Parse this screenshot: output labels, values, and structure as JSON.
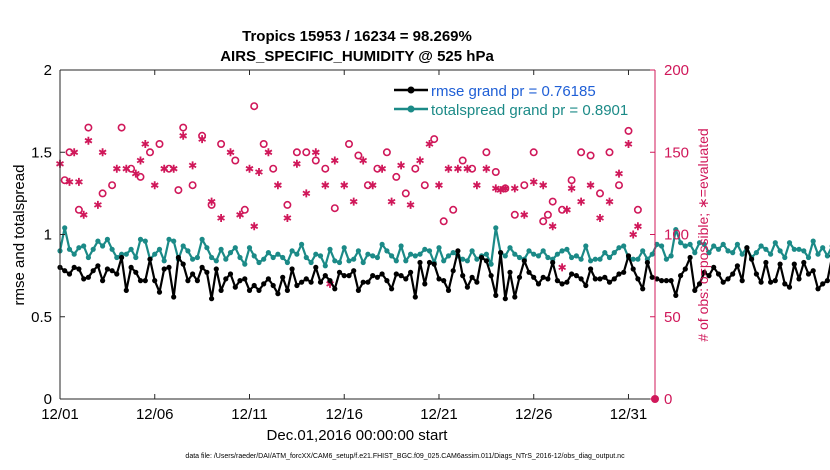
{
  "chart_data": {
    "type": "line",
    "title": "Tropics 15953 / 16234 = 98.269%",
    "subtitle": "AIRS_SPECIFIC_HUMIDITY @ 525 hPa",
    "xlabel": "Dec.01,2016 00:00:00 start",
    "ylabel": "rmse and totalspread",
    "ylabel_right": "# of obs: o=possible; ∗=evaluated",
    "xlim": [
      0,
      31.4
    ],
    "ylim": [
      0,
      2
    ],
    "ylim_right": [
      0,
      200
    ],
    "x_ticks": [
      {
        "x": 0,
        "label": "12/01"
      },
      {
        "x": 5,
        "label": "12/06"
      },
      {
        "x": 10,
        "label": "12/11"
      },
      {
        "x": 15,
        "label": "12/16"
      },
      {
        "x": 20,
        "label": "12/21"
      },
      {
        "x": 25,
        "label": "12/26"
      },
      {
        "x": 30,
        "label": "12/31"
      }
    ],
    "y_ticks": [
      0,
      0.5,
      1,
      1.5,
      2
    ],
    "y_ticks_right": [
      0,
      50,
      100,
      150,
      200
    ],
    "x_step_days": 0.25,
    "legend": {
      "position": "top-right",
      "entries": [
        "rmse grand pr = 0.76185",
        "totalspread grand pr = 0.8901"
      ]
    },
    "series": [
      {
        "name": "rmse",
        "axis": "left",
        "color": "#000000",
        "values": [
          0.8,
          0.78,
          0.76,
          0.8,
          0.79,
          0.73,
          0.74,
          0.78,
          0.81,
          0.72,
          0.79,
          0.78,
          0.76,
          0.86,
          0.66,
          0.8,
          0.77,
          0.72,
          0.72,
          0.85,
          0.72,
          0.65,
          0.79,
          0.8,
          0.62,
          0.86,
          0.82,
          0.72,
          0.76,
          0.72,
          0.8,
          0.77,
          0.61,
          0.79,
          0.66,
          0.73,
          0.76,
          0.68,
          0.72,
          0.73,
          0.66,
          0.69,
          0.66,
          0.7,
          0.73,
          0.69,
          0.64,
          0.74,
          0.66,
          0.79,
          0.69,
          0.71,
          0.73,
          0.71,
          0.8,
          0.71,
          0.75,
          0.72,
          0.67,
          0.77,
          0.75,
          0.75,
          0.78,
          0.66,
          0.71,
          0.71,
          0.75,
          0.74,
          0.76,
          0.72,
          0.67,
          0.76,
          0.75,
          0.73,
          0.77,
          0.62,
          0.83,
          0.7,
          0.83,
          0.82,
          0.73,
          0.72,
          0.66,
          0.78,
          0.9,
          0.75,
          0.68,
          0.74,
          0.71,
          0.86,
          0.84,
          0.75,
          0.63,
          0.89,
          0.61,
          0.77,
          0.62,
          0.74,
          0.84,
          0.77,
          0.74,
          0.7,
          0.74,
          0.73,
          0.83,
          0.72,
          0.7,
          0.71,
          0.76,
          0.75,
          0.73,
          0.69,
          0.79,
          0.73,
          0.73,
          0.74,
          0.71,
          0.73,
          0.76,
          0.77,
          0.87,
          0.79,
          0.73,
          0.67,
          0.83,
          0.74,
          0.73,
          0.72,
          0.72,
          0.72,
          0.63,
          0.75,
          0.79,
          0.86,
          0.66,
          0.7,
          0.77,
          0.75,
          0.8,
          0.76,
          0.71,
          0.73,
          0.76,
          0.81,
          0.72,
          0.92,
          0.85,
          0.76,
          0.71,
          0.83,
          0.71,
          0.72,
          0.82,
          0.7,
          0.68,
          0.82,
          0.73,
          0.83,
          0.76,
          0.78,
          0.67,
          0.7,
          0.72,
          0.87,
          0.83,
          0.7,
          0.76,
          0.75,
          0.81,
          0.89,
          0.87,
          0.72,
          0.8,
          0.9,
          0.84,
          0.88,
          0.86,
          0.7,
          0.82,
          0.7,
          0.72,
          0.86,
          0.88,
          0.74,
          0.8,
          0.82,
          0.85,
          0.75,
          0.82,
          0.8,
          0.78,
          0.85,
          0.82,
          0.68,
          0.7,
          0.8,
          0.9,
          0.82,
          0.76,
          0.61,
          0.72,
          0.86,
          0.86
        ]
      },
      {
        "name": "totalspread",
        "axis": "left",
        "color": "#1b8a87",
        "values": [
          0.9,
          1.04,
          0.91,
          0.88,
          0.92,
          0.93,
          0.86,
          0.91,
          0.96,
          0.93,
          0.97,
          0.91,
          0.86,
          0.88,
          0.88,
          0.91,
          0.86,
          0.97,
          0.96,
          0.85,
          0.88,
          0.91,
          0.84,
          0.97,
          0.96,
          0.85,
          0.93,
          0.9,
          0.85,
          0.86,
          0.97,
          0.92,
          0.86,
          0.84,
          0.91,
          0.85,
          0.89,
          0.92,
          0.86,
          0.82,
          0.92,
          0.87,
          0.83,
          0.85,
          0.89,
          0.86,
          0.88,
          0.86,
          0.83,
          0.9,
          0.88,
          0.94,
          0.86,
          0.83,
          0.88,
          0.87,
          0.81,
          0.91,
          0.84,
          0.83,
          0.92,
          0.84,
          0.85,
          0.9,
          0.83,
          0.88,
          0.87,
          0.86,
          0.94,
          0.9,
          0.87,
          0.84,
          0.93,
          0.84,
          0.88,
          0.87,
          0.88,
          0.91,
          0.9,
          0.83,
          0.92,
          0.84,
          0.87,
          0.89,
          0.87,
          0.85,
          0.84,
          0.9,
          0.85,
          0.87,
          0.88,
          0.82,
          1.04,
          0.89,
          0.87,
          0.92,
          0.88,
          0.86,
          0.85,
          0.9,
          0.88,
          0.87,
          0.9,
          0.86,
          0.85,
          0.88,
          0.9,
          0.91,
          0.86,
          0.87,
          0.85,
          0.93,
          0.84,
          0.85,
          0.85,
          0.89,
          0.86,
          0.89,
          0.92,
          0.93,
          0.86,
          0.85,
          0.85,
          0.9,
          0.85,
          0.88,
          0.94,
          0.93,
          0.85,
          0.87,
          1.03,
          0.95,
          0.93,
          0.94,
          0.89,
          0.95,
          0.94,
          0.89,
          0.93,
          0.91,
          0.94,
          0.9,
          0.89,
          0.94,
          0.88,
          0.92,
          0.86,
          0.89,
          0.93,
          0.91,
          0.88,
          0.95,
          0.9,
          0.86,
          0.95,
          0.91,
          0.91,
          0.9,
          0.86,
          0.96,
          0.88,
          0.92,
          0.87,
          0.93,
          0.9,
          0.92,
          0.88,
          0.91,
          0.96,
          0.91,
          0.95,
          0.91,
          0.92,
          0.97,
          0.96,
          0.96,
          0.9,
          0.92,
          0.93,
          0.9,
          0.9,
          0.87,
          0.89,
          0.88,
          0.95,
          0.87,
          0.9,
          0.9,
          0.92,
          0.89,
          0.94,
          0.95,
          0.94,
          0.89,
          0.91,
          0.92,
          0.88,
          0.85,
          0.91,
          0.86
        ]
      },
      {
        "name": "possible",
        "axis": "right",
        "marker": "o",
        "color": "#d0185a",
        "points": [
          [
            0.25,
            133
          ],
          [
            0.5,
            150
          ],
          [
            1.0,
            115
          ],
          [
            1.5,
            165
          ],
          [
            2.25,
            125
          ],
          [
            2.75,
            130
          ],
          [
            3.25,
            165
          ],
          [
            3.75,
            140
          ],
          [
            4.25,
            135
          ],
          [
            4.75,
            150
          ],
          [
            5.25,
            155
          ],
          [
            5.75,
            140
          ],
          [
            6.25,
            127
          ],
          [
            6.5,
            165
          ],
          [
            7.0,
            130
          ],
          [
            7.5,
            160
          ],
          [
            8.0,
            118
          ],
          [
            8.5,
            155
          ],
          [
            9.25,
            145
          ],
          [
            9.75,
            115
          ],
          [
            10.25,
            178
          ],
          [
            10.75,
            155
          ],
          [
            11.25,
            140
          ],
          [
            12.0,
            118
          ],
          [
            12.5,
            150
          ],
          [
            13.0,
            150
          ],
          [
            13.5,
            145
          ],
          [
            14.0,
            140
          ],
          [
            14.5,
            116
          ],
          [
            15.25,
            155
          ],
          [
            15.75,
            148
          ],
          [
            16.25,
            130
          ],
          [
            16.75,
            140
          ],
          [
            17.25,
            150
          ],
          [
            17.75,
            135
          ],
          [
            18.25,
            125
          ],
          [
            18.75,
            140
          ],
          [
            19.25,
            130
          ],
          [
            19.75,
            158
          ],
          [
            20.25,
            108
          ],
          [
            20.75,
            115
          ],
          [
            21.25,
            145
          ],
          [
            21.75,
            140
          ],
          [
            22.5,
            150
          ],
          [
            23.0,
            138
          ],
          [
            23.5,
            128
          ],
          [
            24.0,
            112
          ],
          [
            24.5,
            130
          ],
          [
            25.0,
            150
          ],
          [
            25.5,
            108
          ],
          [
            25.75,
            112
          ],
          [
            26.0,
            120
          ],
          [
            26.5,
            115
          ],
          [
            27.0,
            133
          ],
          [
            27.5,
            150
          ],
          [
            28.0,
            148
          ],
          [
            28.5,
            125
          ],
          [
            29.0,
            150
          ],
          [
            29.5,
            130
          ],
          [
            30.0,
            163
          ],
          [
            30.5,
            115
          ]
        ]
      },
      {
        "name": "evaluated",
        "axis": "right",
        "marker": "*",
        "color": "#d0185a",
        "points": [
          [
            0.0,
            143
          ],
          [
            0.5,
            132
          ],
          [
            0.75,
            150
          ],
          [
            1.0,
            132
          ],
          [
            1.25,
            112
          ],
          [
            1.5,
            157
          ],
          [
            2.0,
            118
          ],
          [
            2.25,
            150
          ],
          [
            3.0,
            140
          ],
          [
            3.5,
            140
          ],
          [
            4.0,
            137
          ],
          [
            4.25,
            145
          ],
          [
            4.5,
            155
          ],
          [
            5.0,
            130
          ],
          [
            5.5,
            140
          ],
          [
            6.0,
            140
          ],
          [
            6.5,
            160
          ],
          [
            7.0,
            142
          ],
          [
            7.5,
            158
          ],
          [
            8.0,
            120
          ],
          [
            8.5,
            110
          ],
          [
            9.0,
            150
          ],
          [
            9.5,
            112
          ],
          [
            10.0,
            140
          ],
          [
            10.25,
            105
          ],
          [
            10.5,
            138
          ],
          [
            11.0,
            150
          ],
          [
            11.5,
            130
          ],
          [
            12.0,
            110
          ],
          [
            12.5,
            143
          ],
          [
            13.0,
            125
          ],
          [
            13.5,
            150
          ],
          [
            14.0,
            130
          ],
          [
            14.25,
            70
          ],
          [
            14.5,
            145
          ],
          [
            15.0,
            130
          ],
          [
            15.5,
            120
          ],
          [
            16.0,
            145
          ],
          [
            16.5,
            130
          ],
          [
            17.0,
            140
          ],
          [
            17.5,
            120
          ],
          [
            18.0,
            142
          ],
          [
            18.5,
            118
          ],
          [
            19.0,
            145
          ],
          [
            19.5,
            155
          ],
          [
            20.0,
            130
          ],
          [
            20.5,
            140
          ],
          [
            21.0,
            140
          ],
          [
            21.5,
            140
          ],
          [
            22.0,
            130
          ],
          [
            22.5,
            140
          ],
          [
            23.0,
            128
          ],
          [
            23.25,
            127
          ],
          [
            23.5,
            128
          ],
          [
            24.0,
            128
          ],
          [
            24.5,
            112
          ],
          [
            25.0,
            132
          ],
          [
            25.5,
            130
          ],
          [
            26.0,
            105
          ],
          [
            26.5,
            80
          ],
          [
            26.75,
            115
          ],
          [
            27.0,
            128
          ],
          [
            27.5,
            120
          ],
          [
            28.0,
            130
          ],
          [
            28.5,
            110
          ],
          [
            29.0,
            120
          ],
          [
            29.5,
            137
          ],
          [
            30.0,
            155
          ],
          [
            30.25,
            100
          ],
          [
            30.5,
            105
          ]
        ]
      }
    ]
  },
  "footer_note": "data file: /Users/raeder/DAI/ATM_forcXX/CAM6_setup/f.e21.FHIST_BGC.f09_025.CAM6assim.011/Diags_NTrS_2016-12/obs_diag_output.nc"
}
